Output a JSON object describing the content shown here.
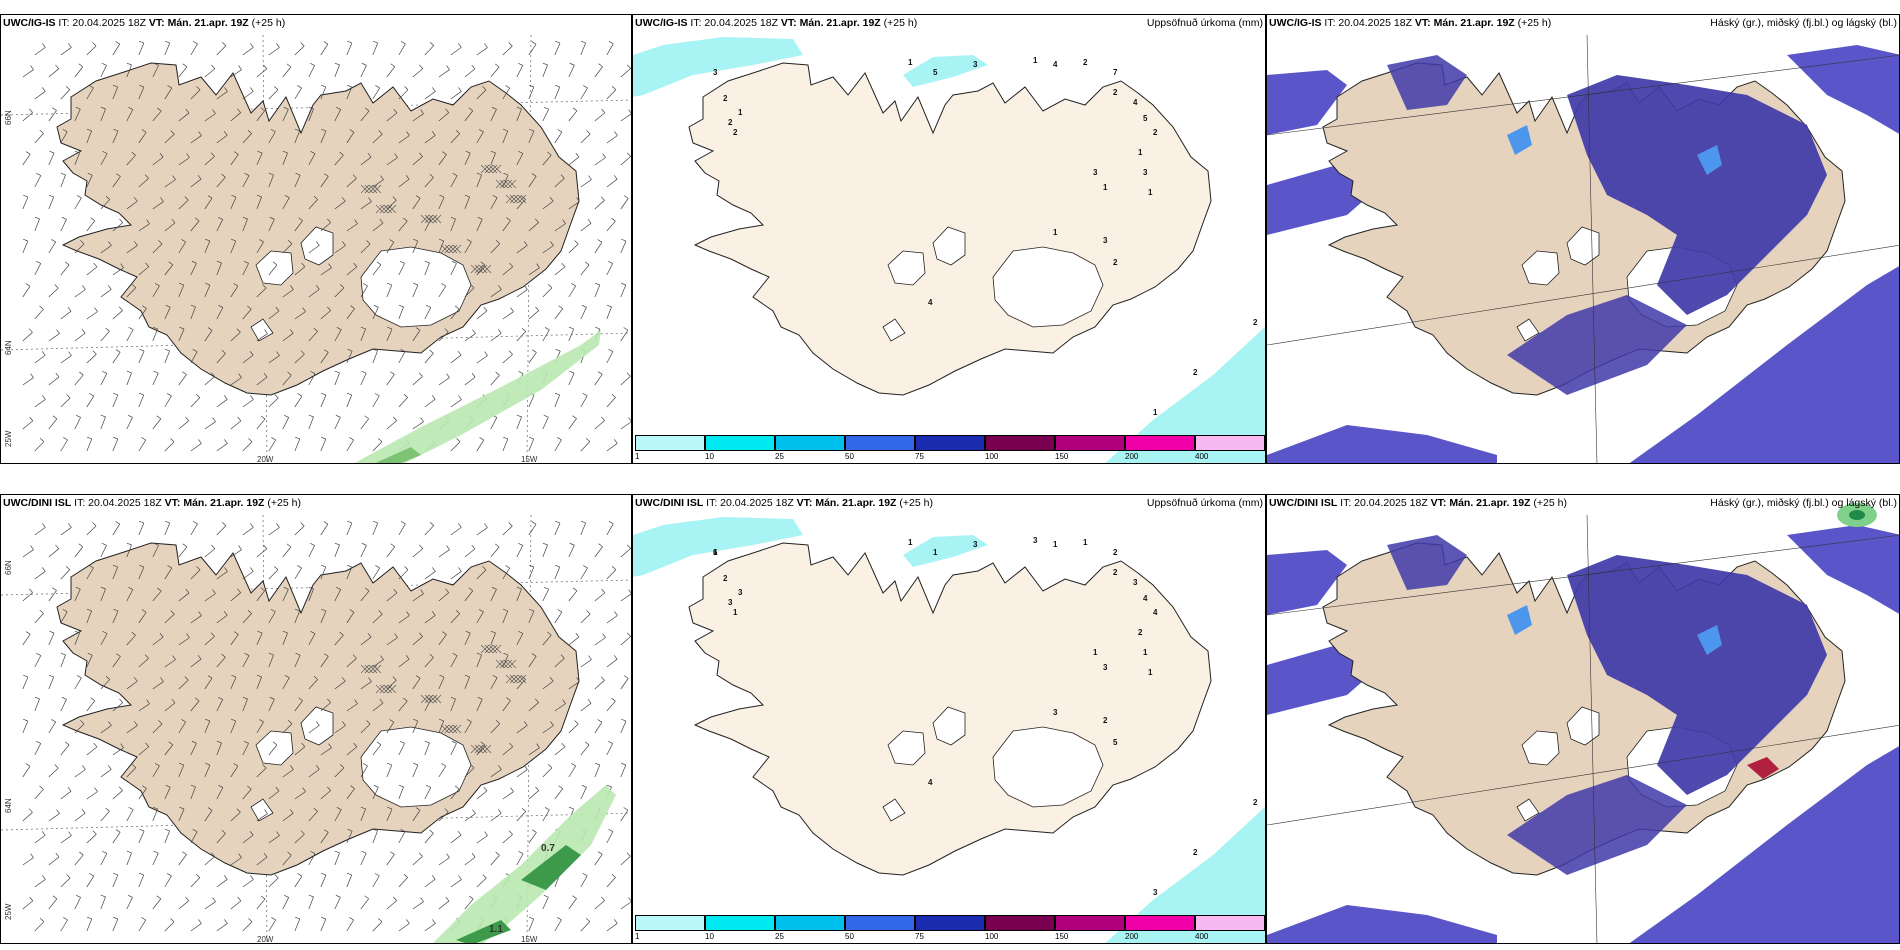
{
  "panels": [
    {
      "id": "tl",
      "header": {
        "model": "UWC/IG-IS",
        "it": "IT: 20.04.2025 18Z",
        "vt": "VT: Mán. 21.apr. 19Z",
        "lead": "(+25 h)",
        "extra": ""
      },
      "type": "wind"
    },
    {
      "id": "tm",
      "header": {
        "model": "UWC/IG-IS",
        "it": "IT: 20.04.2025 18Z",
        "vt": "VT: Mán. 21.apr. 19Z",
        "lead": "(+25 h)",
        "extra": "Uppsöfnuð úrkoma (mm)"
      },
      "type": "precip",
      "numbers": [
        "3",
        "1",
        "5",
        "3",
        "1",
        "4",
        "2",
        "7",
        "2",
        "1",
        "2",
        "2",
        "2",
        "4",
        "5",
        "2",
        "1",
        "3",
        "1",
        "3",
        "1",
        "1",
        "3",
        "2",
        "4",
        "2",
        "2",
        "1"
      ]
    },
    {
      "id": "tr",
      "header": {
        "model": "UWC/IG-IS",
        "it": "IT: 20.04.2025 18Z",
        "vt": "VT: Mán. 21.apr. 19Z",
        "lead": "(+25 h)",
        "extra": "Háský (gr.), miðský (fj.bl.) og lágský (bl.)"
      },
      "type": "cloud"
    },
    {
      "id": "bl",
      "header": {
        "model": "UWC/DINI ISL",
        "it": "IT: 20.04.2025 18Z",
        "vt": "VT: Mán. 21.apr. 19Z",
        "lead": "(+25 h)",
        "extra": ""
      },
      "type": "wind",
      "values": [
        "0.7",
        "1.1"
      ]
    },
    {
      "id": "bm",
      "header": {
        "model": "UWC/DINI ISL",
        "it": "IT: 20.04.2025 18Z",
        "vt": "VT: Mán. 21.apr. 19Z",
        "lead": "(+25 h)",
        "extra": "Uppsöfnuð úrkoma (mm)"
      },
      "type": "precip",
      "numbers": [
        "6",
        "1",
        "1",
        "3",
        "3",
        "1",
        "1",
        "2",
        "2",
        "3",
        "3",
        "1",
        "2",
        "3",
        "4",
        "4",
        "2",
        "1",
        "1",
        "1",
        "3",
        "3",
        "2",
        "5",
        "4",
        "2",
        "2",
        "3",
        "1"
      ]
    },
    {
      "id": "br",
      "header": {
        "model": "UWC/DINI ISL",
        "it": "IT: 20.04.2025 18Z",
        "vt": "VT: Mán. 21.apr. 19Z",
        "lead": "(+25 h)",
        "extra": "Háský (gr.), miðský (fj.bl.) og lágský (bl.)"
      },
      "type": "cloud"
    }
  ],
  "axis_labels": {
    "lon1": "20W",
    "lon2": "15W",
    "lat1": "66N",
    "lat2": "64N",
    "lat3": "25W"
  },
  "colorbar": {
    "ticks": [
      "1",
      "10",
      "25",
      "50",
      "75",
      "100",
      "150",
      "200",
      "400"
    ],
    "colors": [
      "#b8f8f8",
      "#00e8f0",
      "#00c0ee",
      "#3068e8",
      "#1c2cb0",
      "#78004e",
      "#b0007c",
      "#f000a8",
      "#f8b8f0"
    ]
  },
  "colors": {
    "land": "#e9d7c3",
    "land_precip": "#fbf0e4",
    "cloud_low": "#5a55c8",
    "cloud_dark": "#3f3aa8",
    "cloud_mid": "#4d96ee",
    "precip_light": "#a8f4f4",
    "green": "#64c864"
  }
}
